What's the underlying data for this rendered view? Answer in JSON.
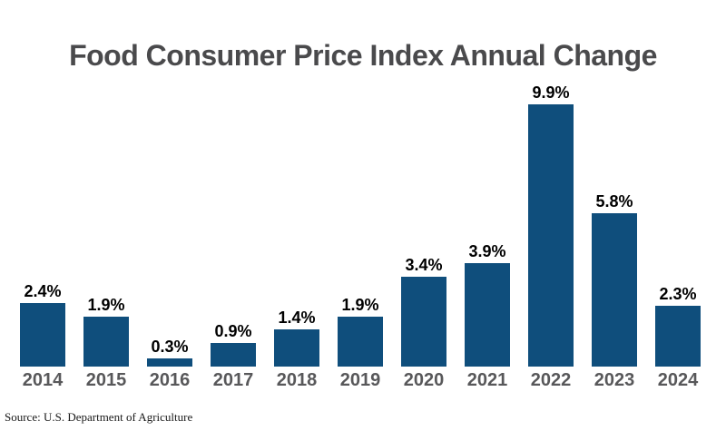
{
  "title": "Food Consumer Price Index Annual Change",
  "source_note": "Source: U.S. Department of Agriculture",
  "colors": {
    "background": "#ffffff",
    "bar": "#0f4e7c",
    "title": "#4a4a4c",
    "value_label": "#000000",
    "year_label": "#58585a",
    "source_text": "#1a1a1a"
  },
  "chart_data": {
    "type": "bar",
    "title": "Food Consumer Price Index Annual Change",
    "categories": [
      "2014",
      "2015",
      "2016",
      "2017",
      "2018",
      "2019",
      "2020",
      "2021",
      "2022",
      "2023",
      "2024"
    ],
    "values": [
      2.4,
      1.9,
      0.3,
      0.9,
      1.4,
      1.9,
      3.4,
      3.9,
      9.9,
      5.8,
      2.3
    ],
    "value_labels": [
      "2.4%",
      "1.9%",
      "0.3%",
      "0.9%",
      "1.4%",
      "1.9%",
      "3.4%",
      "3.9%",
      "9.9%",
      "5.8%",
      "2.3%"
    ],
    "xlabel": "",
    "ylabel": "",
    "ylim": [
      0,
      10.5
    ],
    "grid": false,
    "legend": false,
    "bar_color": "#0f4e7c",
    "annotation": "Source: U.S. Department of Agriculture"
  }
}
